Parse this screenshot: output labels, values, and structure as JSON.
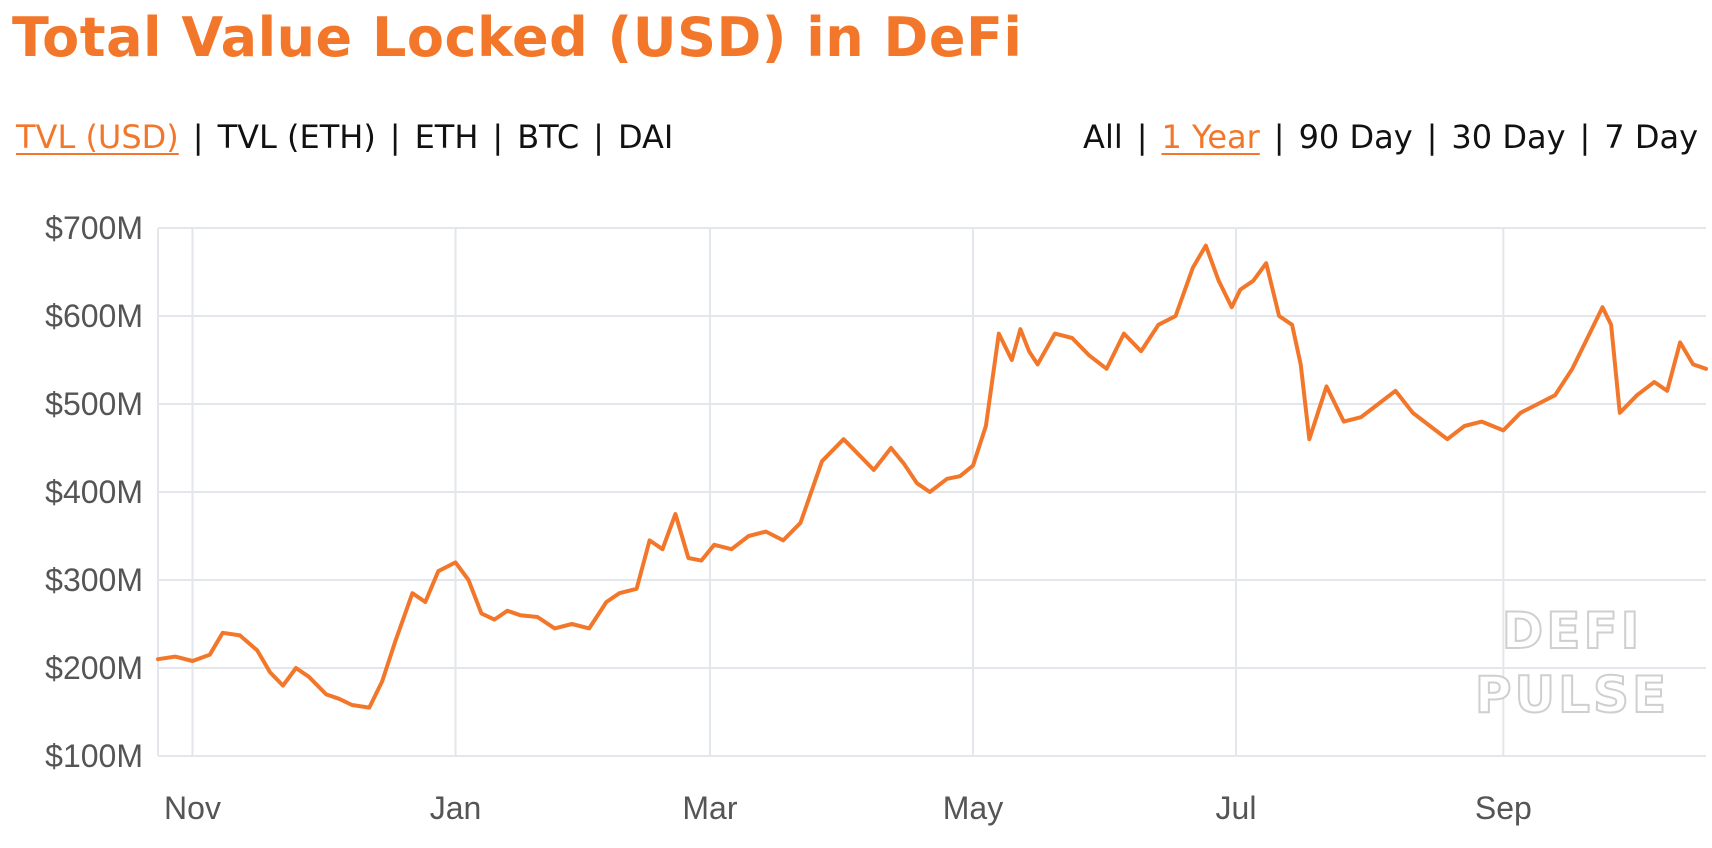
{
  "title": "Total Value Locked (USD) in DeFi",
  "colors": {
    "accent": "#f3772a",
    "grid": "#e3e6ea",
    "axis": "#555555"
  },
  "metric_tabs": [
    {
      "label": "TVL (USD)",
      "active": true
    },
    {
      "label": "TVL (ETH)",
      "active": false
    },
    {
      "label": "ETH",
      "active": false
    },
    {
      "label": "BTC",
      "active": false
    },
    {
      "label": "DAI",
      "active": false
    }
  ],
  "range_tabs": [
    {
      "label": "All",
      "active": false
    },
    {
      "label": "1 Year",
      "active": true
    },
    {
      "label": "90 Day",
      "active": false
    },
    {
      "label": "30 Day",
      "active": false
    },
    {
      "label": "7 Day",
      "active": false
    }
  ],
  "watermark": [
    "DEFI",
    "PULSE"
  ],
  "chart_data": {
    "type": "line",
    "title": "Total Value Locked (USD) in DeFi",
    "xlabel": "",
    "ylabel": "",
    "ylim": [
      100,
      700
    ],
    "y_ticks": [
      100,
      200,
      300,
      400,
      500,
      600,
      700
    ],
    "y_tick_labels": [
      "$100M",
      "$200M",
      "$300M",
      "$400M",
      "$500M",
      "$600M",
      "$700M"
    ],
    "x_ticks": [
      "2018-11-01",
      "2019-01-01",
      "2019-03-01",
      "2019-05-01",
      "2019-07-01",
      "2019-09-01"
    ],
    "x_tick_labels": [
      "Nov",
      "Jan",
      "Mar",
      "May",
      "Jul",
      "Sep"
    ],
    "xlim": [
      "2018-10-24",
      "2019-10-18"
    ],
    "grid": true,
    "series": [
      {
        "x": [
          "2018-10-24",
          "2018-10-28",
          "2018-11-01",
          "2018-11-05",
          "2018-11-08",
          "2018-11-12",
          "2018-11-16",
          "2018-11-19",
          "2018-11-22",
          "2018-11-25",
          "2018-11-28",
          "2018-12-02",
          "2018-12-05",
          "2018-12-08",
          "2018-12-12",
          "2018-12-15",
          "2018-12-18",
          "2018-12-22",
          "2018-12-25",
          "2018-12-28",
          "2019-01-01",
          "2019-01-04",
          "2019-01-07",
          "2019-01-10",
          "2019-01-13",
          "2019-01-16",
          "2019-01-20",
          "2019-01-24",
          "2019-01-28",
          "2019-02-01",
          "2019-02-05",
          "2019-02-08",
          "2019-02-12",
          "2019-02-15",
          "2019-02-18",
          "2019-02-21",
          "2019-02-24",
          "2019-02-27",
          "2019-03-02",
          "2019-03-06",
          "2019-03-10",
          "2019-03-14",
          "2019-03-18",
          "2019-03-22",
          "2019-03-27",
          "2019-04-01",
          "2019-04-05",
          "2019-04-08",
          "2019-04-12",
          "2019-04-15",
          "2019-04-18",
          "2019-04-21",
          "2019-04-25",
          "2019-04-28",
          "2019-05-01",
          "2019-05-04",
          "2019-05-07",
          "2019-05-10",
          "2019-05-12",
          "2019-05-14",
          "2019-05-16",
          "2019-05-20",
          "2019-05-24",
          "2019-05-28",
          "2019-06-01",
          "2019-06-05",
          "2019-06-09",
          "2019-06-13",
          "2019-06-17",
          "2019-06-21",
          "2019-06-24",
          "2019-06-27",
          "2019-06-30",
          "2019-07-02",
          "2019-07-05",
          "2019-07-08",
          "2019-07-11",
          "2019-07-14",
          "2019-07-16",
          "2019-07-18",
          "2019-07-22",
          "2019-07-26",
          "2019-07-30",
          "2019-08-03",
          "2019-08-07",
          "2019-08-11",
          "2019-08-15",
          "2019-08-19",
          "2019-08-23",
          "2019-08-27",
          "2019-09-01",
          "2019-09-05",
          "2019-09-09",
          "2019-09-13",
          "2019-09-17",
          "2019-09-20",
          "2019-09-24",
          "2019-09-26",
          "2019-09-28",
          "2019-10-02",
          "2019-10-06",
          "2019-10-09",
          "2019-10-12",
          "2019-10-15",
          "2019-10-18"
        ],
        "values": [
          210,
          213,
          208,
          215,
          240,
          237,
          220,
          195,
          180,
          200,
          190,
          170,
          165,
          158,
          155,
          185,
          230,
          285,
          275,
          310,
          320,
          300,
          262,
          255,
          265,
          260,
          258,
          245,
          250,
          245,
          275,
          285,
          290,
          345,
          335,
          375,
          325,
          322,
          340,
          335,
          350,
          355,
          345,
          365,
          435,
          460,
          440,
          425,
          450,
          432,
          410,
          400,
          415,
          418,
          430,
          475,
          580,
          550,
          585,
          560,
          545,
          580,
          575,
          555,
          540,
          580,
          560,
          590,
          600,
          655,
          680,
          640,
          610,
          630,
          640,
          660,
          600,
          590,
          545,
          460,
          520,
          480,
          485,
          500,
          515,
          490,
          475,
          460,
          475,
          480,
          470,
          490,
          500,
          510,
          540,
          570,
          610,
          590,
          490,
          510,
          525,
          515,
          570,
          545,
          540
        ]
      }
    ]
  }
}
